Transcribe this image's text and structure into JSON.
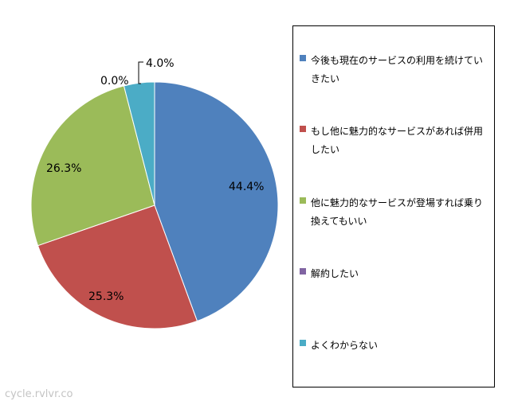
{
  "chart_data": {
    "type": "pie",
    "title": "",
    "slices": [
      {
        "label": "今後も現在のサービスの利用を続けていきたい",
        "value": 44.4,
        "display": "44.4%",
        "color": "#4F81BD"
      },
      {
        "label": "もし他に魅力的なサービスがあれば併用したい",
        "value": 25.3,
        "display": "25.3%",
        "color": "#C0504D"
      },
      {
        "label": "他に魅力的なサービスが登場すれば乗り換えてもいい",
        "value": 26.3,
        "display": "26.3%",
        "color": "#9BBB59"
      },
      {
        "label": "解約したい",
        "value": 0.0,
        "display": "0.0%",
        "color": "#8064A2"
      },
      {
        "label": "よくわからない",
        "value": 4.0,
        "display": "4.0%",
        "color": "#4BACC6"
      }
    ],
    "legend_position": "right",
    "start": "top, clockwise"
  },
  "watermark": "cycle.rvlvr.co"
}
